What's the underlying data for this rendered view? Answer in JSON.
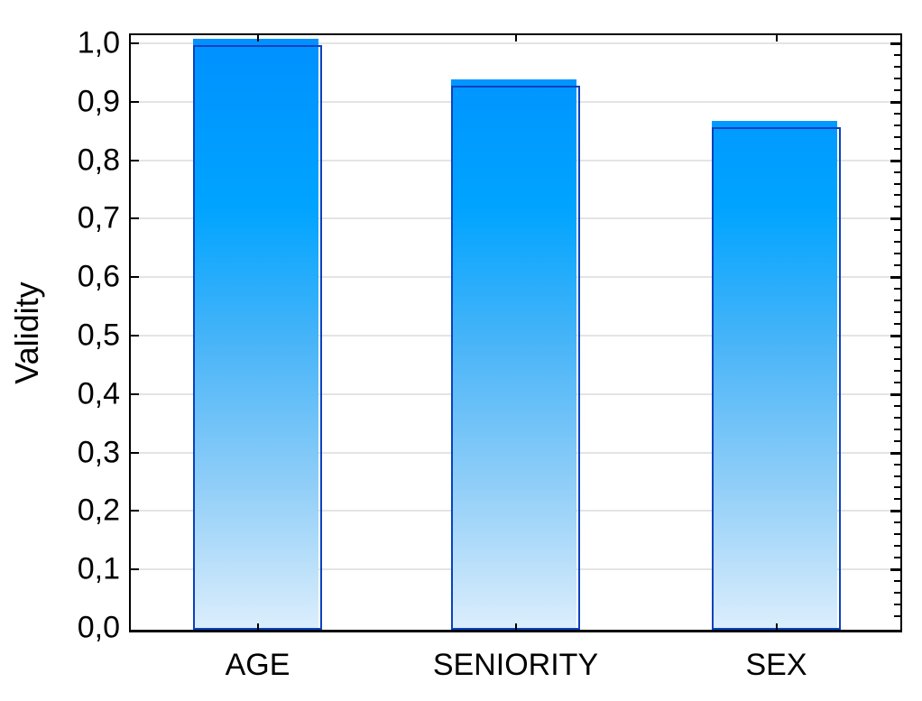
{
  "chart_data": {
    "type": "bar",
    "title": "",
    "categories": [
      "AGE",
      "SENIORITY",
      "SEX"
    ],
    "values": [
      1.0,
      0.93,
      0.86
    ],
    "series": [
      {
        "name": "Validity",
        "values": [
          1.0,
          0.93,
          0.86
        ]
      }
    ],
    "xlabel": "",
    "ylabel": "Validity",
    "ylim": [
      0.0,
      1.0
    ],
    "y_major_step": 0.1,
    "y_minor_step": 0.02,
    "y_tick_labels": [
      "0,0",
      "0,1",
      "0,2",
      "0,3",
      "0,4",
      "0,5",
      "0,6",
      "0,7",
      "0,8",
      "0,9",
      "1,0"
    ],
    "decimal_separator": ",",
    "grid": "horizontal-major",
    "legend": "none",
    "colors": {
      "bar_gradient_top": "#008FFF",
      "bar_gradient_upper": "#00A4FF",
      "bar_gradient_mid": "#47B4F8",
      "bar_gradient_lower": "#90CEF8",
      "bar_gradient_bottom": "#DCEEFC",
      "bar_border": "#0B42BE",
      "gridline": "#E4E4E4",
      "axis": "#000000",
      "text": "#000000",
      "background": "#FFFFFF"
    }
  }
}
